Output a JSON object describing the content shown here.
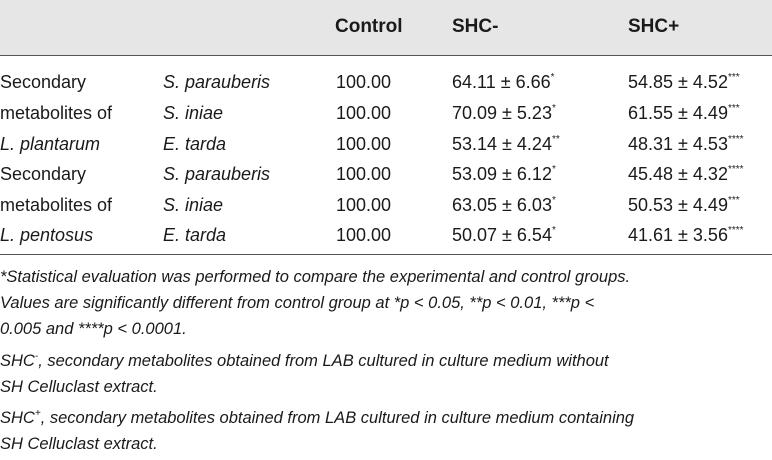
{
  "table": {
    "headers": {
      "control": "Control",
      "shc_minus": "SHC-",
      "shc_plus": "SHC+"
    },
    "rows": [
      {
        "group": "Secondary",
        "organism": "S. parauberis",
        "control": "100.00",
        "shc_minus": "64.11 ± 6.66",
        "shc_minus_sig": "*",
        "shc_plus": "54.85 ± 4.52",
        "shc_plus_sig": "***"
      },
      {
        "group": "metabolites of",
        "organism": "S. iniae",
        "control": "100.00",
        "shc_minus": "70.09 ± 5.23",
        "shc_minus_sig": "*",
        "shc_plus": "61.55 ± 4.49",
        "shc_plus_sig": "***"
      },
      {
        "group": "L. plantarum",
        "organism": "E. tarda",
        "control": "100.00",
        "shc_minus": "53.14 ± 4.24",
        "shc_minus_sig": "**",
        "shc_plus": "48.31 ± 4.53",
        "shc_plus_sig": "****"
      },
      {
        "group": "Secondary",
        "organism": "S. parauberis",
        "control": "100.00",
        "shc_minus": "53.09 ± 6.12",
        "shc_minus_sig": "*",
        "shc_plus": "45.48 ± 4.32",
        "shc_plus_sig": "****"
      },
      {
        "group": "metabolites of",
        "organism": "S. iniae",
        "control": "100.00",
        "shc_minus": "63.05 ± 6.03",
        "shc_minus_sig": "*",
        "shc_plus": "50.53 ± 4.49",
        "shc_plus_sig": "***"
      },
      {
        "group": "L. pentosus",
        "organism": "E. tarda",
        "control": "100.00",
        "shc_minus": "50.07 ± 6.54",
        "shc_minus_sig": "*",
        "shc_plus": "41.61 ± 3.56",
        "shc_plus_sig": "****"
      }
    ]
  },
  "footnotes": {
    "stat_line1": "*Statistical evaluation was performed to compare the experimental and control groups.",
    "stat_line2": "Values are significantly different from control group at *p < 0.05, **p < 0.01, ***p <",
    "stat_line3": "0.005 and ****p < 0.0001.",
    "shc_minus_label": "SHC",
    "shc_minus_sup": "-",
    "shc_minus_line1": ", secondary metabolites obtained from LAB cultured in culture medium without",
    "shc_minus_line2": "SH Celluclast extract.",
    "shc_plus_label": "SHC",
    "shc_plus_sup": "+",
    "shc_plus_line1": ", secondary metabolites obtained from LAB cultured in culture medium containing",
    "shc_plus_line2": "SH Celluclast extract."
  }
}
